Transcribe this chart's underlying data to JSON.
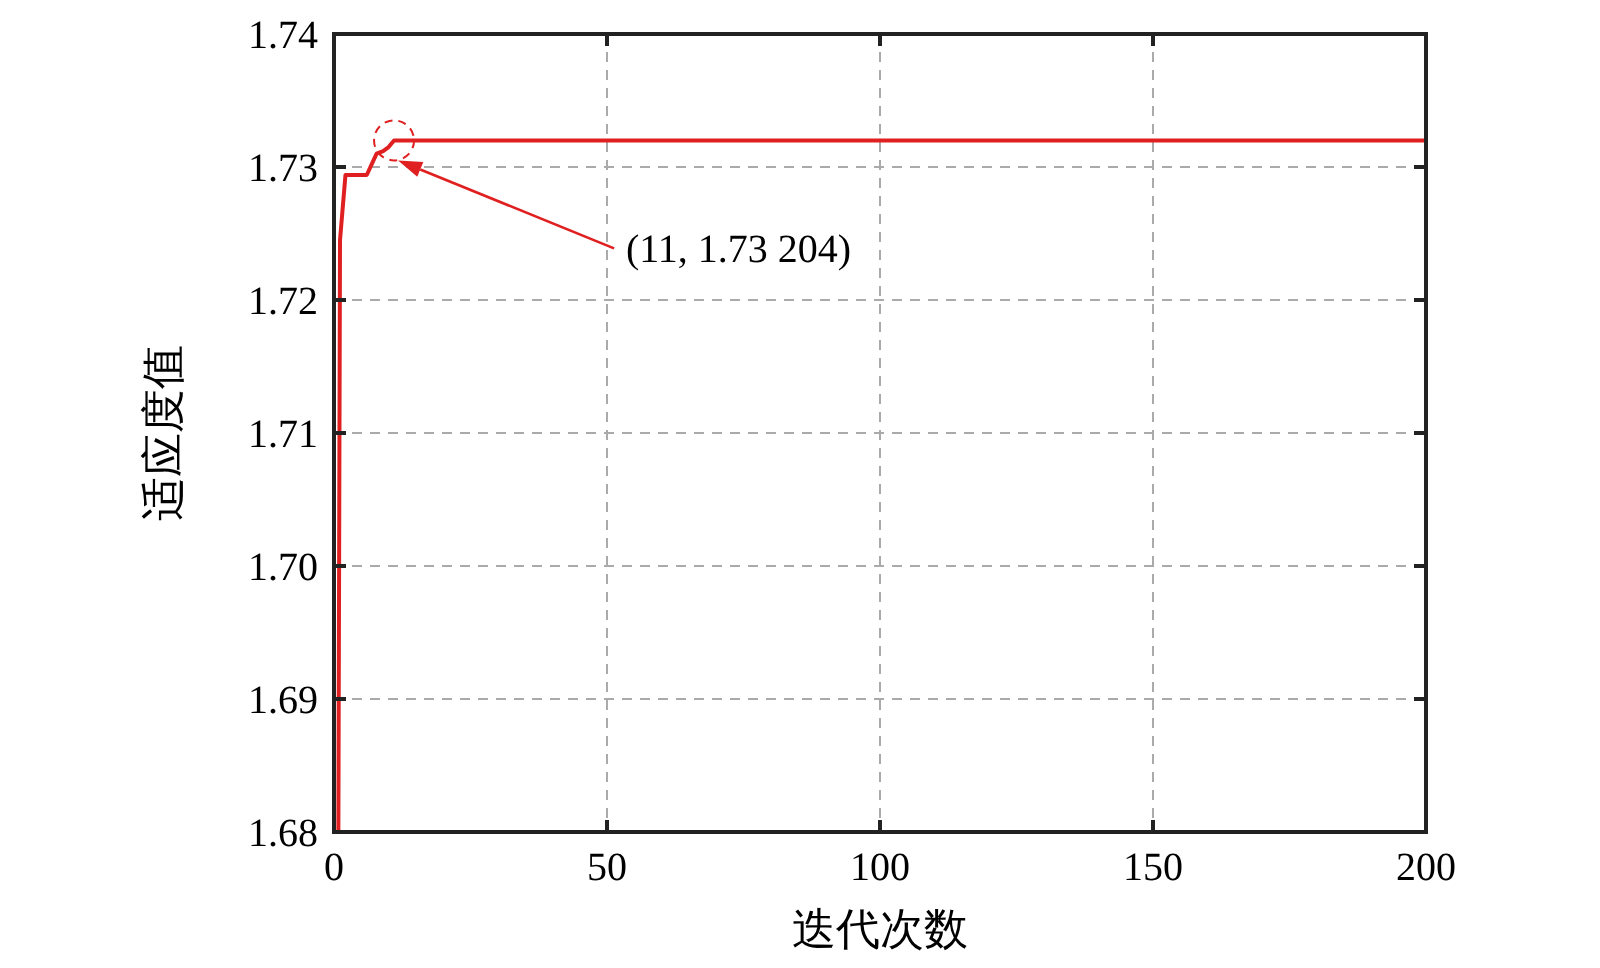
{
  "chart_data": {
    "type": "line",
    "xlabel": "迭代次数",
    "ylabel": "适应度值",
    "x": [
      0.8,
      1.1,
      2.1,
      6,
      7.8,
      9,
      10,
      11,
      200
    ],
    "series": [
      {
        "color": "#e02020",
        "values": [
          1.68,
          1.7245,
          1.7294,
          1.7294,
          1.731,
          1.7312,
          1.7315,
          1.732,
          1.732
        ]
      }
    ],
    "xlim": [
      0,
      200
    ],
    "xticks": [
      0,
      50,
      100,
      150,
      200
    ],
    "ylim": [
      1.68,
      1.74
    ],
    "yticks": [
      {
        "value": 1.68,
        "label": "1.68"
      },
      {
        "value": 1.69,
        "label": "1.69"
      },
      {
        "value": 1.7,
        "label": "1.70"
      },
      {
        "value": 1.71,
        "label": "1.71"
      },
      {
        "value": 1.72,
        "label": "1.72"
      },
      {
        "value": 1.73,
        "label": "1.73"
      },
      {
        "value": 1.74,
        "label": "1.74"
      }
    ],
    "grid": true,
    "line_style": "solid",
    "marker": "none",
    "annotations": [
      "(11, 1.73 204)"
    ]
  }
}
